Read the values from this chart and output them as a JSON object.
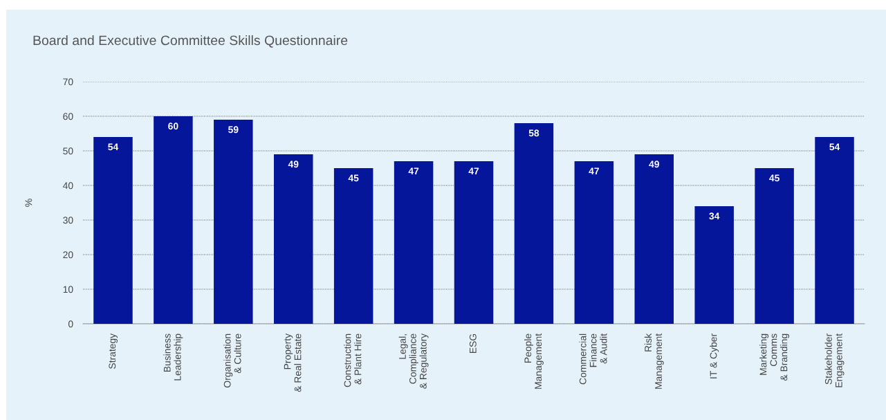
{
  "chart_data": {
    "type": "bar",
    "title": "Board and Executive Committee Skills Questionnaire",
    "ylabel": "%",
    "categories": [
      "Strategy",
      "Business\nLeadership",
      "Organisation\n& Culture",
      "Property\n& Real Estate",
      "Construction\n& Plant Hire",
      "Legal,\nCompliance\n& Regulatory",
      "ESG",
      "People\nManagement",
      "Commercial\nFinance\n& Audit",
      "Risk\nManagement",
      "IT & Cyber",
      "Marketing\nComms\n& Branding",
      "Stakeholder\nEngagement"
    ],
    "values": [
      54,
      60,
      59,
      49,
      45,
      47,
      47,
      58,
      47,
      49,
      34,
      45,
      54
    ],
    "color": "#06169a",
    "ylim": [
      0,
      70
    ],
    "yticks": [
      0,
      10,
      20,
      30,
      40,
      50,
      60,
      70
    ],
    "grid": "y",
    "data_labels": true
  }
}
